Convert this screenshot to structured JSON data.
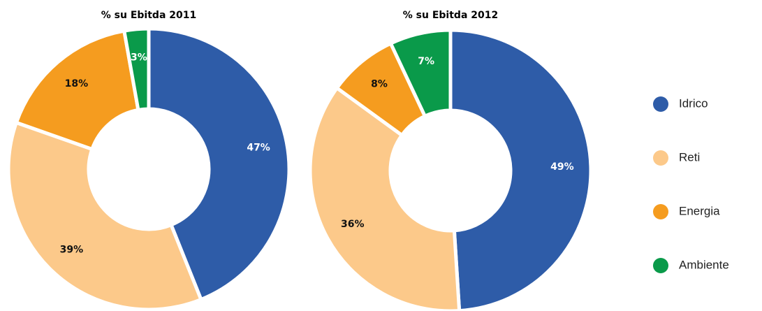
{
  "chart_data": [
    {
      "type": "pie",
      "title": "% su Ebitda 2011",
      "categories": [
        "Idrico",
        "Reti",
        "Energia",
        "Ambiente"
      ],
      "values": [
        47,
        39,
        18,
        3
      ],
      "value_labels": [
        "47%",
        "39%",
        "18%",
        "3%"
      ],
      "colors": [
        "#2e5ca8",
        "#fcc98a",
        "#f59c1f",
        "#0a9a4a"
      ],
      "legend": "right"
    },
    {
      "type": "pie",
      "title": "% su Ebitda 2012",
      "categories": [
        "Idrico",
        "Reti",
        "Energia",
        "Ambiente"
      ],
      "values": [
        49,
        36,
        8,
        7
      ],
      "value_labels": [
        "49%",
        "36%",
        "8%",
        "7%"
      ],
      "colors": [
        "#2e5ca8",
        "#fcc98a",
        "#f59c1f",
        "#0a9a4a"
      ],
      "legend": "right"
    }
  ]
}
